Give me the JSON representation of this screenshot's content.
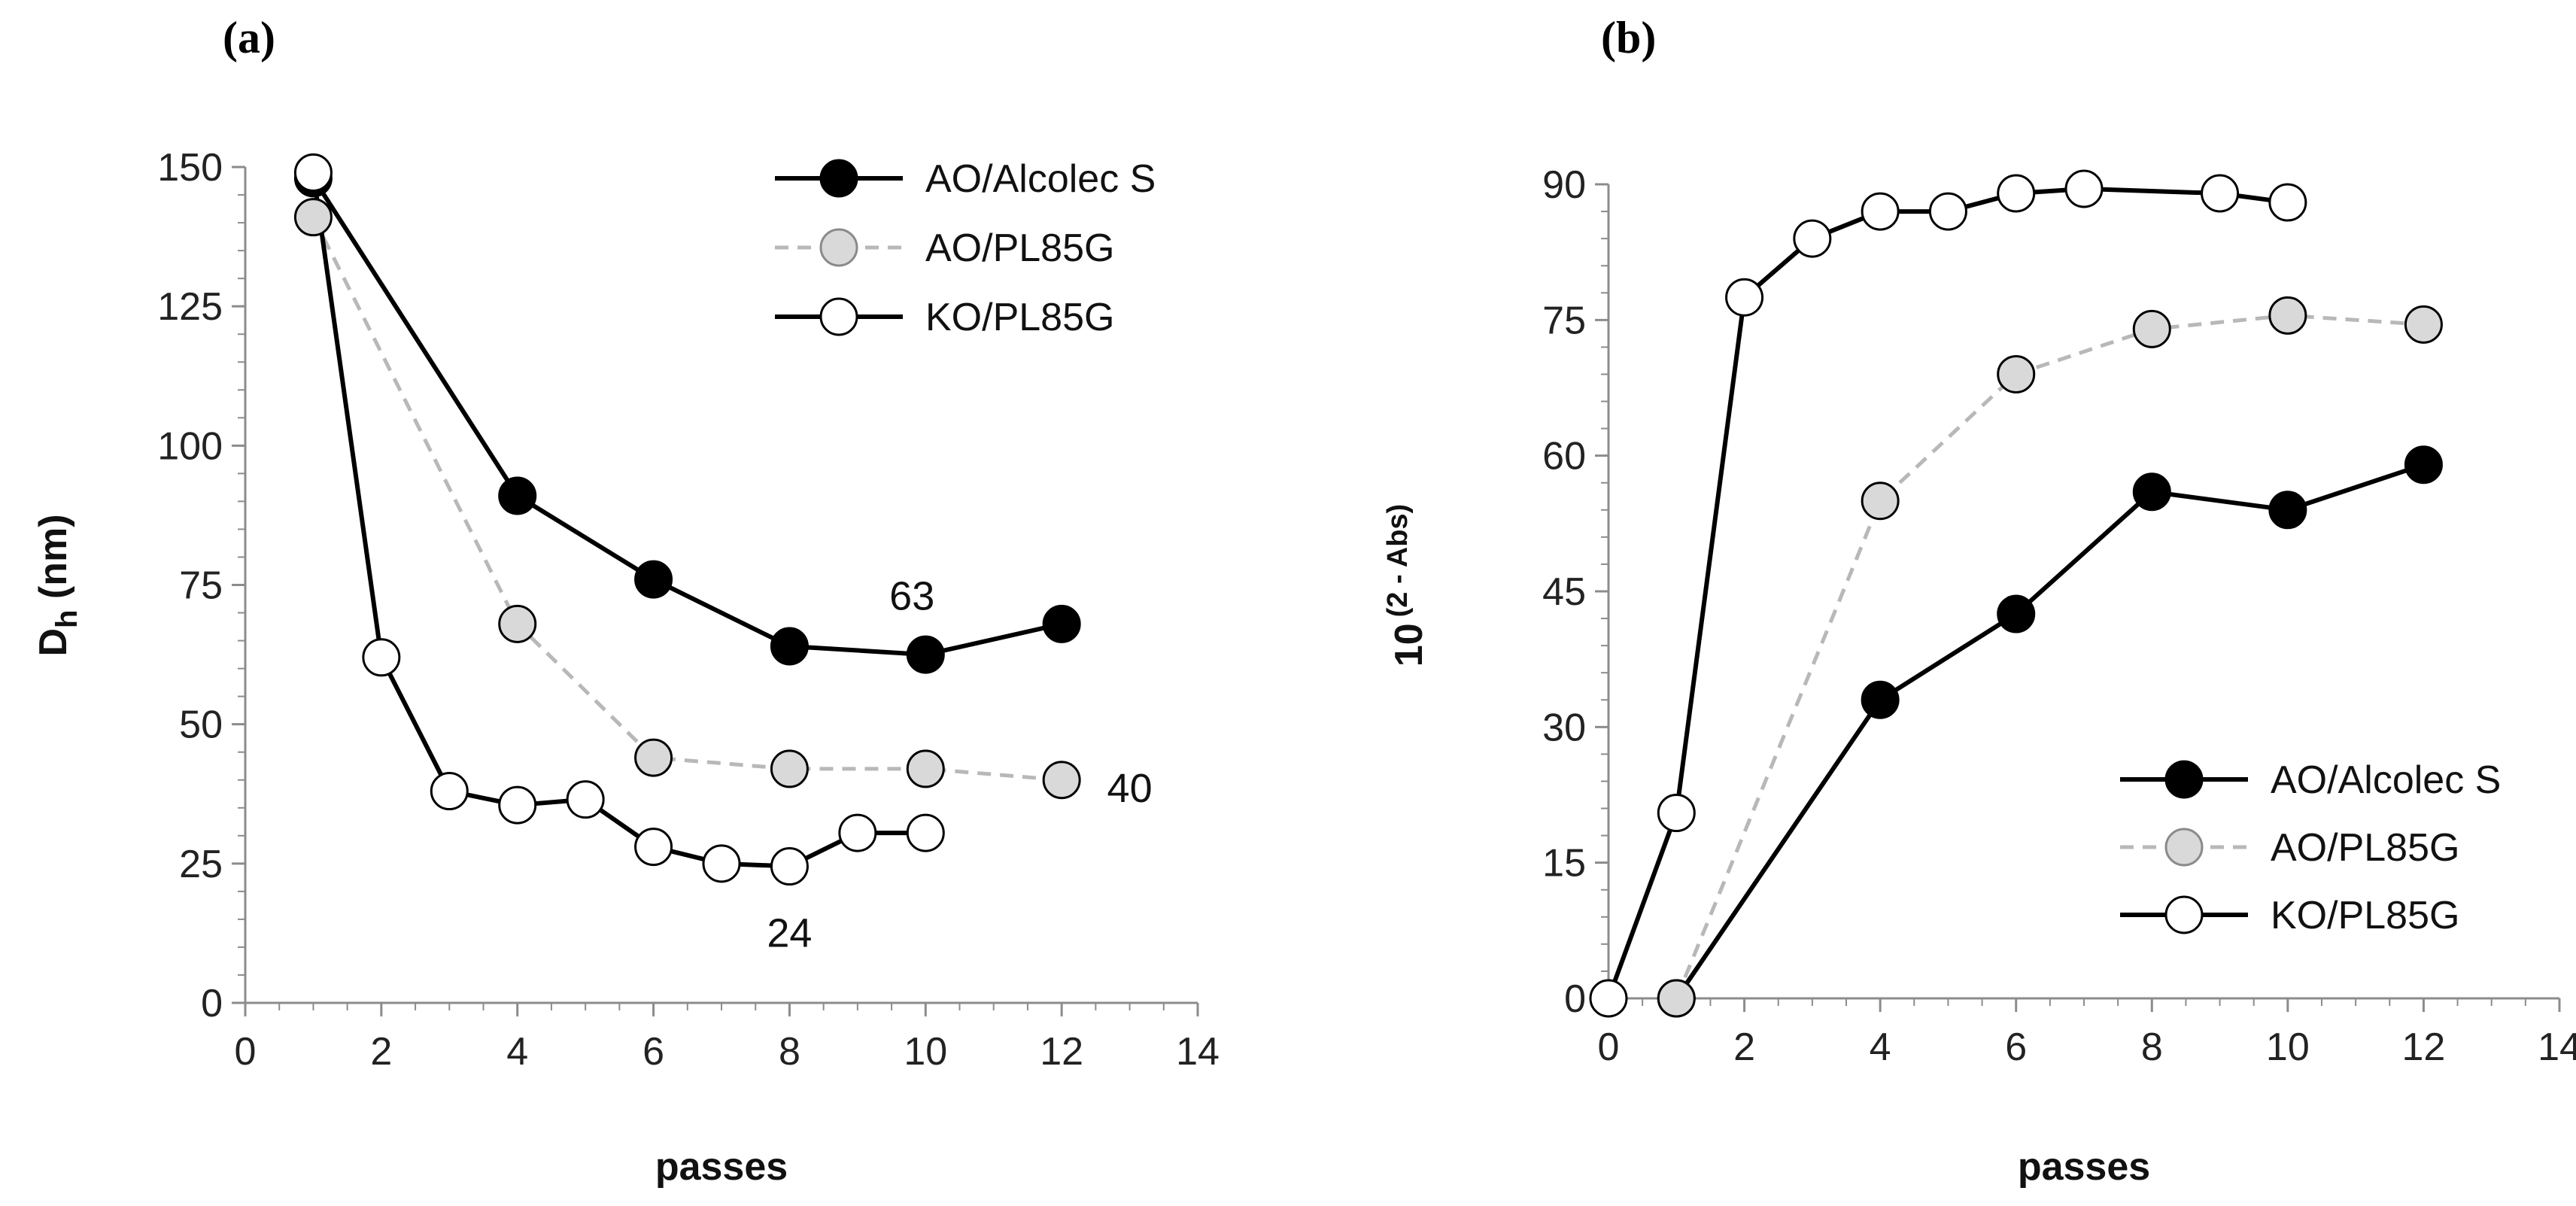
{
  "figure": {
    "panels": [
      "(a)",
      "(b)"
    ]
  },
  "colors": {
    "alcolec_fill": "#000000",
    "pl85g_fill": "#d9d9d9",
    "pl85g_line": "#b8b8b8",
    "ko_fill": "#ffffff",
    "line_dark": "#000000",
    "axis": "#8c8c8c"
  },
  "chart_data": [
    {
      "panel": "(a)",
      "type": "line",
      "title": "",
      "xlabel": "passes",
      "ylabel_main": "D",
      "ylabel_sub": "h",
      "ylabel_tail": " (nm)",
      "xlim": [
        0,
        14
      ],
      "ylim": [
        0,
        150
      ],
      "xticks": [
        0,
        2,
        4,
        6,
        8,
        10,
        12,
        14
      ],
      "yticks": [
        0,
        25,
        50,
        75,
        100,
        125,
        150
      ],
      "grid": false,
      "legend": "top-right",
      "series": [
        {
          "name": "AO/Alcolec S",
          "style": "alcolec",
          "x": [
            1,
            4,
            6,
            8,
            10,
            12
          ],
          "y": [
            148,
            91,
            76,
            64,
            62.5,
            68
          ]
        },
        {
          "name": "AO/PL85G",
          "style": "pl85g",
          "x": [
            1,
            4,
            6,
            8,
            10,
            12
          ],
          "y": [
            141,
            68,
            44,
            42,
            42,
            40
          ]
        },
        {
          "name": "KO/PL85G",
          "style": "ko",
          "x": [
            1,
            2,
            3,
            4,
            5,
            6,
            7,
            8,
            9,
            10
          ],
          "y": [
            149,
            62,
            38,
            35.5,
            36.5,
            28,
            25,
            24.5,
            30.5,
            30.5
          ]
        }
      ],
      "annotations": [
        {
          "text": "63",
          "x": 9.8,
          "y": 73
        },
        {
          "text": "40",
          "x": 13.0,
          "y": 38.5
        },
        {
          "text": "24",
          "x": 8.0,
          "y": 12.5
        }
      ]
    },
    {
      "panel": "(b)",
      "type": "line",
      "title": "",
      "xlabel": "passes",
      "ylabel_main": "10",
      "ylabel_sup": "(2 - Abs)",
      "xlim": [
        0,
        14
      ],
      "ylim": [
        0,
        90
      ],
      "xticks": [
        0,
        2,
        4,
        6,
        8,
        10,
        12,
        14
      ],
      "yticks": [
        0,
        15,
        30,
        45,
        60,
        75,
        90
      ],
      "grid": false,
      "legend": "bottom-right",
      "series": [
        {
          "name": "AO/Alcolec S",
          "style": "alcolec",
          "x": [
            1,
            4,
            6,
            8,
            10,
            12
          ],
          "y": [
            0,
            33,
            42.5,
            56,
            54,
            59
          ]
        },
        {
          "name": "AO/PL85G",
          "style": "pl85g",
          "x": [
            1,
            4,
            6,
            8,
            10,
            12
          ],
          "y": [
            0,
            55,
            69,
            74,
            75.5,
            74.5
          ]
        },
        {
          "name": "KO/PL85G",
          "style": "ko",
          "x": [
            0,
            1,
            2,
            3,
            4,
            5,
            6,
            7,
            9,
            10
          ],
          "y": [
            0,
            20.5,
            77.5,
            84,
            87,
            87,
            89,
            89.5,
            89,
            88
          ]
        }
      ],
      "annotations": []
    }
  ]
}
